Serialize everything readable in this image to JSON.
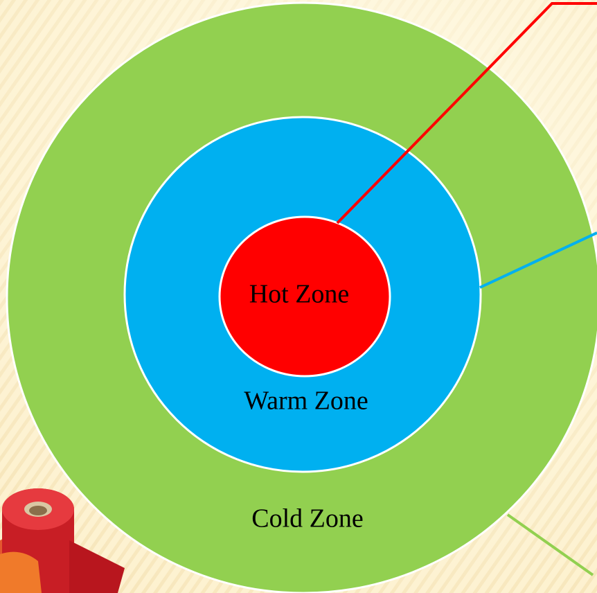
{
  "zones": [
    {
      "label": "Hot Zone"
    },
    {
      "label": "Warm Zone"
    },
    {
      "label": "Cold Zone"
    }
  ]
}
